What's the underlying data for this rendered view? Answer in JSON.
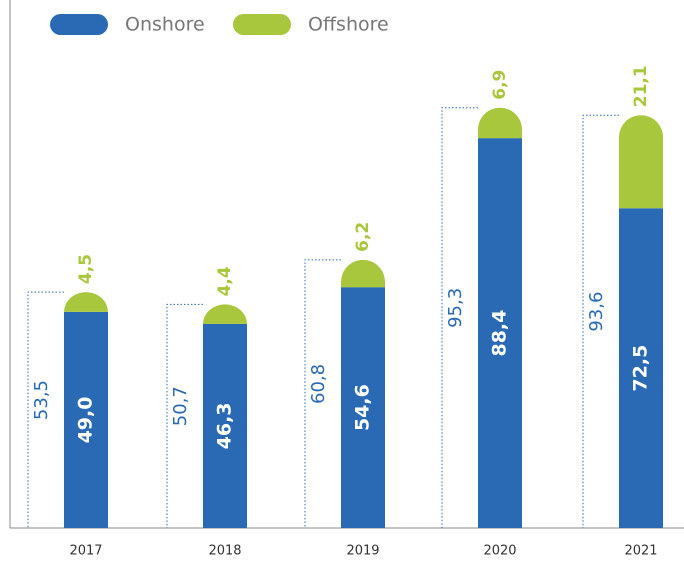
{
  "chart_data": {
    "type": "stacked-bar",
    "categories": [
      "2017",
      "2018",
      "2019",
      "2020",
      "2021"
    ],
    "series": [
      {
        "name": "Onshore",
        "color": "#2a69b3",
        "values": [
          49.0,
          46.3,
          54.6,
          88.4,
          72.5
        ],
        "value_labels": [
          "49,0",
          "46,3",
          "54,6",
          "88,4",
          "72,5"
        ]
      },
      {
        "name": "Offshore",
        "color": "#a9c73d",
        "values": [
          4.5,
          4.4,
          6.2,
          6.9,
          21.1
        ],
        "value_labels": [
          "4,5",
          "4,4",
          "6,2",
          "6,9",
          "21,1"
        ]
      }
    ],
    "totals": {
      "values": [
        53.5,
        50.7,
        60.8,
        95.3,
        93.6
      ],
      "value_labels": [
        "53,5",
        "50,7",
        "60,8",
        "95,3",
        "93,6"
      ]
    },
    "ylim": [
      0,
      100
    ],
    "legend": "top-left"
  }
}
